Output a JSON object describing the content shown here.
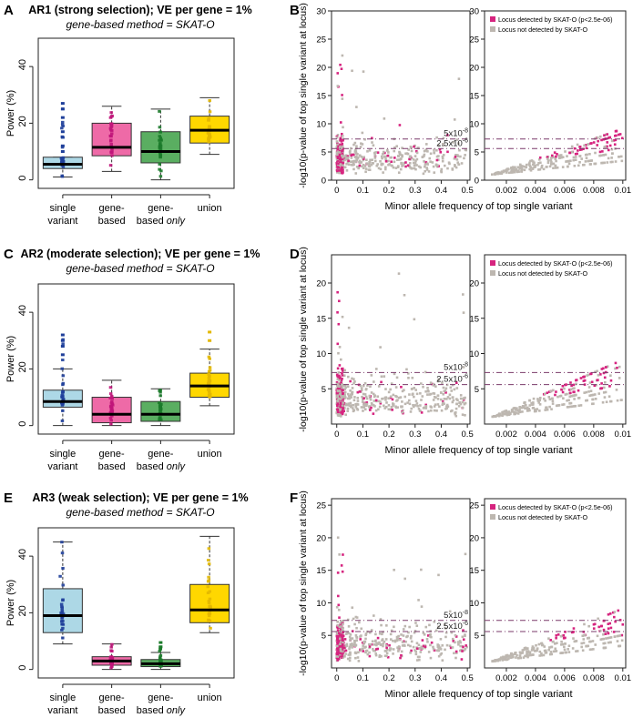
{
  "legend": {
    "detected_fmt": "Locus detected by SKAT-O (p<{t})",
    "not_detected": "Locus not detected by SKAT-O"
  },
  "colors": {
    "single": "#add8e6",
    "gene": "#ee6aa7",
    "geneonly": "#5aae61",
    "union": "#ffd700",
    "dots_single": "#1f3f9a",
    "dots_gene": "#c0157a",
    "dots_geneonly": "#1b7a2a",
    "dots_union": "#e3b800",
    "detected": "#d6247f",
    "not_detected": "#bdb7b0",
    "threshold_line": "#7a3a6a"
  },
  "chart_data": [
    {
      "panel": "A",
      "type": "boxplot",
      "title": "AR1 (strong selection); VE per gene = 1%",
      "subtitle": "gene-based method = SKAT-O",
      "ylabel": "Power (%)",
      "ylim": [
        -3,
        50
      ],
      "yticks": [
        0,
        20,
        40
      ],
      "categories": [
        [
          "single",
          "variant"
        ],
        [
          "gene-",
          "based"
        ],
        [
          "gene-",
          "based only"
        ],
        [
          "union",
          ""
        ]
      ],
      "boxes": [
        {
          "min": 1,
          "q1": 4,
          "median": 5.5,
          "q3": 8,
          "max": 8,
          "outliers": [
            10,
            12,
            15,
            17,
            22,
            25,
            27
          ]
        },
        {
          "min": 3,
          "q1": 8.5,
          "median": 11.5,
          "q3": 20,
          "max": 26,
          "outliers": []
        },
        {
          "min": 0,
          "q1": 6,
          "median": 10,
          "q3": 17,
          "max": 25,
          "outliers": []
        },
        {
          "min": 9,
          "q1": 13,
          "median": 17.5,
          "q3": 22.5,
          "max": 29,
          "outliers": []
        }
      ]
    },
    {
      "panel": "C",
      "type": "boxplot",
      "title": "AR2 (moderate selection); VE per gene = 1%",
      "subtitle": "gene-based method = SKAT-O",
      "ylabel": "Power (%)",
      "ylim": [
        -3,
        50
      ],
      "yticks": [
        0,
        20,
        40
      ],
      "categories": [
        [
          "single",
          "variant"
        ],
        [
          "gene-",
          "based"
        ],
        [
          "gene-",
          "based only"
        ],
        [
          "union",
          ""
        ]
      ],
      "boxes": [
        {
          "min": 0,
          "q1": 6.5,
          "median": 8.5,
          "q3": 12.5,
          "max": 20,
          "outliers": [
            25,
            28,
            30,
            32
          ]
        },
        {
          "min": 0,
          "q1": 1,
          "median": 4,
          "q3": 10,
          "max": 16,
          "outliers": []
        },
        {
          "min": 0,
          "q1": 1.5,
          "median": 4,
          "q3": 8.5,
          "max": 13,
          "outliers": []
        },
        {
          "min": 7,
          "q1": 10,
          "median": 14,
          "q3": 18.5,
          "max": 27,
          "outliers": [
            30,
            33
          ]
        }
      ]
    },
    {
      "panel": "E",
      "type": "boxplot",
      "title": "AR3 (weak selection); VE per gene = 1%",
      "subtitle": "gene-based method = SKAT-O",
      "ylabel": "Power (%)",
      "ylim": [
        -3,
        50
      ],
      "yticks": [
        0,
        20,
        40
      ],
      "categories": [
        [
          "single",
          "variant"
        ],
        [
          "gene-",
          "based"
        ],
        [
          "gene-",
          "based only"
        ],
        [
          "union",
          ""
        ]
      ],
      "boxes": [
        {
          "min": 9,
          "q1": 13,
          "median": 19,
          "q3": 28.5,
          "max": 45,
          "outliers": []
        },
        {
          "min": 0,
          "q1": 1.5,
          "median": 3,
          "q3": 4.5,
          "max": 9,
          "outliers": []
        },
        {
          "min": 0,
          "q1": 1,
          "median": 2,
          "q3": 3.5,
          "max": 6,
          "outliers": [
            8,
            9.5
          ]
        },
        {
          "min": 13,
          "q1": 16.5,
          "median": 21,
          "q3": 30,
          "max": 47,
          "outliers": []
        }
      ]
    },
    {
      "panel": "B",
      "type": "scatter",
      "threshold": "2.5e-06",
      "ylabel": "-log10(p-value of top single variant at locus)",
      "xlabel": "Minor allele frequency of top single variant",
      "ylim": [
        0,
        30
      ],
      "yticks": [
        0,
        5,
        10,
        15,
        20,
        25,
        30
      ],
      "wide": {
        "xlim": [
          -0.02,
          0.51
        ],
        "xticks": [
          0,
          0.1,
          0.2,
          0.3,
          0.4,
          0.5
        ]
      },
      "zoom": {
        "xlim": [
          0.0005,
          0.0102
        ],
        "xticks": [
          0.002,
          0.004,
          0.006,
          0.008,
          0.01
        ]
      },
      "hlines": [
        {
          "y": 7.3,
          "label": "5x10^-8"
        },
        {
          "y": 5.6,
          "label": "2.5x10^-6"
        }
      ]
    },
    {
      "panel": "D",
      "type": "scatter",
      "threshold": "2.5e-06",
      "ylabel": "-log10(p-value of top single variant at locus)",
      "xlabel": "Minor allele frequency of top single variant",
      "ylim": [
        0,
        24
      ],
      "yticks": [
        5,
        10,
        15,
        20
      ],
      "wide": {
        "xlim": [
          -0.02,
          0.51
        ],
        "xticks": [
          0,
          0.1,
          0.2,
          0.3,
          0.4,
          0.5
        ]
      },
      "zoom": {
        "xlim": [
          0.0005,
          0.0102
        ],
        "xticks": [
          0.002,
          0.004,
          0.006,
          0.008,
          0.01
        ]
      },
      "hlines": [
        {
          "y": 7.3,
          "label": "5x10^-8"
        },
        {
          "y": 5.6,
          "label": "2.5x10^-6"
        }
      ]
    },
    {
      "panel": "F",
      "type": "scatter",
      "threshold": "2.5e-06",
      "ylabel": "-log10(p-value of top single variant at locus)",
      "xlabel": "Minor allele frequency of top single variant",
      "ylim": [
        0,
        26
      ],
      "yticks": [
        5,
        10,
        15,
        20,
        25
      ],
      "wide": {
        "xlim": [
          -0.02,
          0.51
        ],
        "xticks": [
          0,
          0.1,
          0.2,
          0.3,
          0.4,
          0.5
        ]
      },
      "zoom": {
        "xlim": [
          0.0005,
          0.0102
        ],
        "xticks": [
          0.002,
          0.004,
          0.006,
          0.008,
          0.01
        ]
      },
      "hlines": [
        {
          "y": 7.3,
          "label": "5x10^-8"
        },
        {
          "y": 5.6,
          "label": "2.5x10^-6"
        }
      ]
    }
  ]
}
